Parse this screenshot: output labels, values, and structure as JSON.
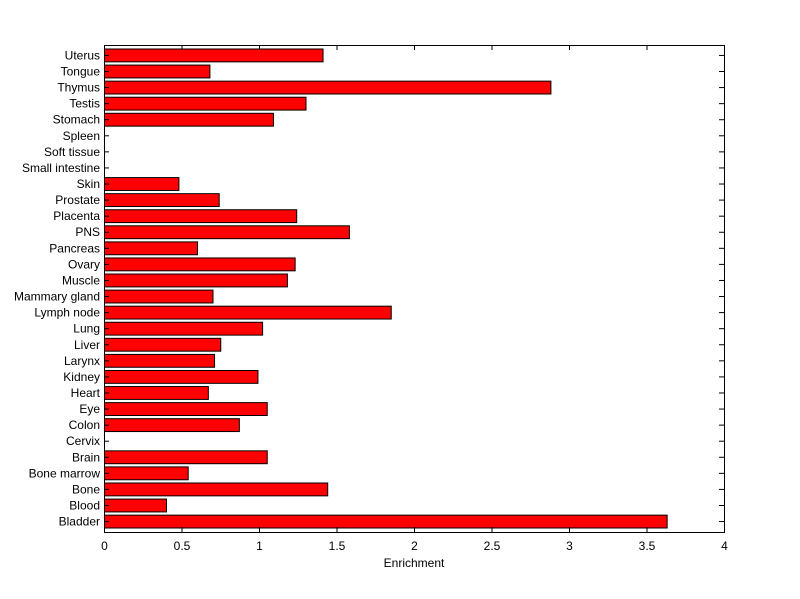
{
  "chart_data": {
    "type": "bar",
    "orientation": "horizontal",
    "title": "",
    "xlabel": "Enrichment",
    "ylabel": "",
    "xlim": [
      0,
      4
    ],
    "xticks": [
      "0",
      "0.5",
      "1",
      "1.5",
      "2",
      "2.5",
      "3",
      "3.5",
      "4"
    ],
    "grid": false,
    "bar_color": "#ff0000",
    "edge_color": "#000000",
    "categories": [
      "Bladder",
      "Blood",
      "Bone",
      "Bone marrow",
      "Brain",
      "Cervix",
      "Colon",
      "Eye",
      "Heart",
      "Kidney",
      "Larynx",
      "Liver",
      "Lung",
      "Lymph node",
      "Mammary gland",
      "Muscle",
      "Ovary",
      "Pancreas",
      "PNS",
      "Placenta",
      "Prostate",
      "Skin",
      "Small intestine",
      "Soft tissue",
      "Spleen",
      "Stomach",
      "Testis",
      "Thymus",
      "Tongue",
      "Uterus"
    ],
    "values": [
      3.63,
      0.4,
      1.44,
      0.54,
      1.05,
      0,
      0.87,
      1.05,
      0.67,
      0.99,
      0.71,
      0.75,
      1.02,
      1.85,
      0.7,
      1.18,
      1.23,
      0.6,
      1.58,
      1.24,
      0.74,
      0.48,
      0,
      0,
      0,
      1.09,
      1.3,
      2.88,
      0.68,
      1.41
    ]
  }
}
